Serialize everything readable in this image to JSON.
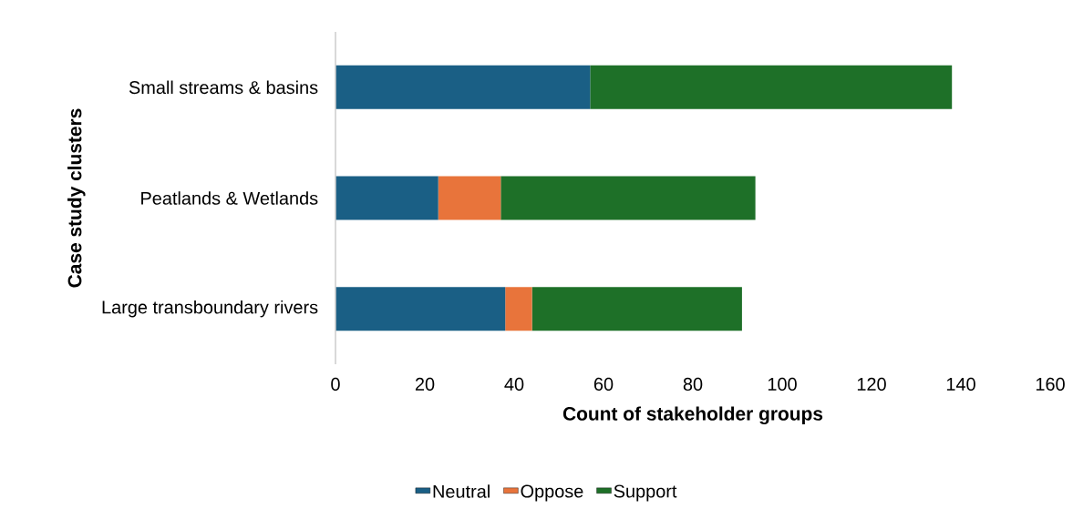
{
  "chart_data": {
    "type": "bar",
    "orientation": "horizontal",
    "stacked": true,
    "categories": [
      "Small streams & basins",
      "Peatlands & Wetlands",
      "Large transboundary rivers"
    ],
    "series": [
      {
        "name": "Neutral",
        "color": "#1a5f85",
        "values": [
          57,
          23,
          38
        ]
      },
      {
        "name": "Oppose",
        "color": "#e8743b",
        "values": [
          0,
          14,
          6
        ]
      },
      {
        "name": "Support",
        "color": "#1e7028",
        "values": [
          81,
          57,
          47
        ]
      }
    ],
    "xlim": [
      0,
      160
    ],
    "xticks": [
      0,
      20,
      40,
      60,
      80,
      100,
      120,
      140,
      160
    ],
    "xlabel": "Count of stakeholder groups",
    "ylabel": "Case study clusters",
    "legend": "bottom"
  }
}
